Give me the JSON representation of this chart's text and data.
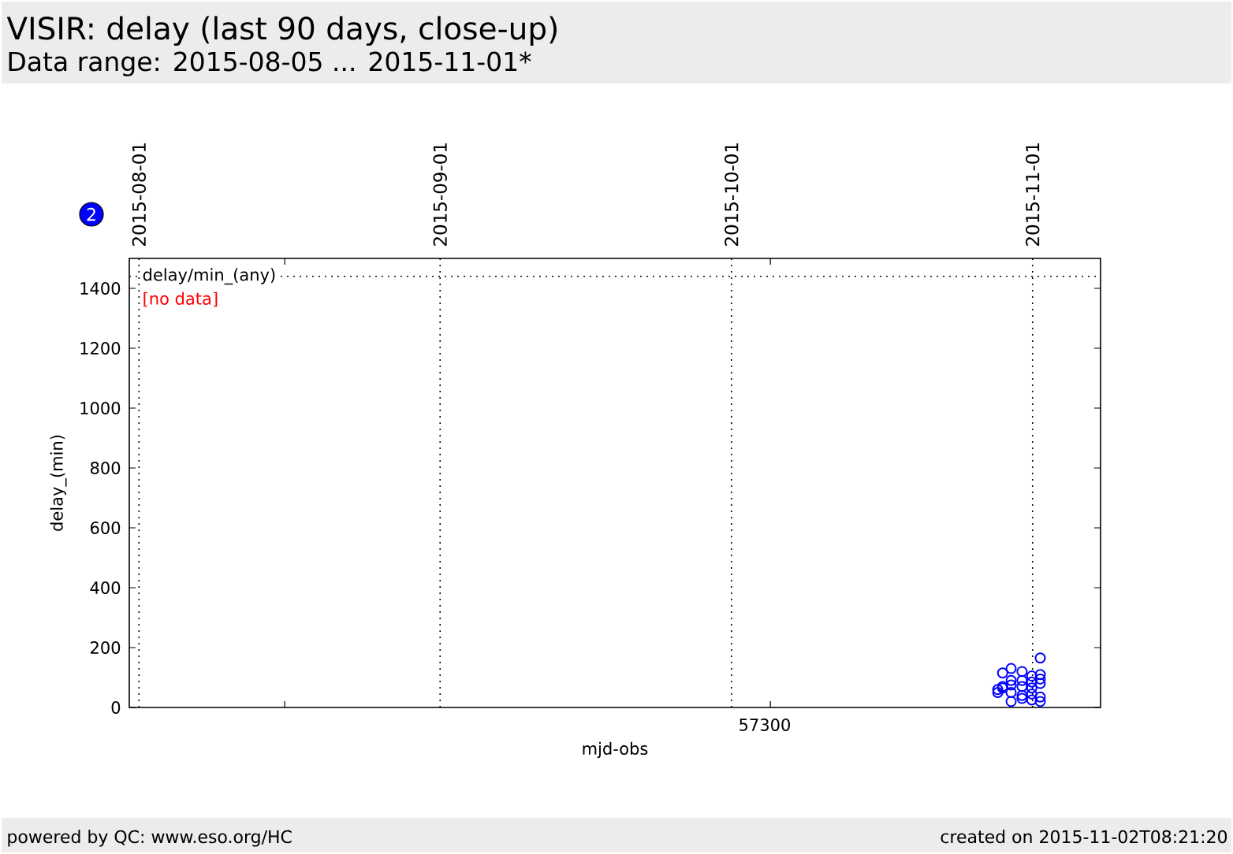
{
  "chart_data": {
    "type": "scatter",
    "title": "VISIR: delay (last 90 days, close-up)",
    "subtitle": "Data range: 2015-08-05 ... 2015-11-01*",
    "xlabel": "mjd-obs",
    "ylabel": "delay_(min)",
    "x": [
      "2015-10-28T10:00",
      "2015-10-28T10:00",
      "2015-10-28T22:00",
      "2015-10-28T22:00",
      "2015-10-28T22:00",
      "2015-10-29T19:00",
      "2015-10-29T19:00",
      "2015-10-29T19:00",
      "2015-10-29T19:00",
      "2015-10-29T19:00",
      "2015-10-30T22:00",
      "2015-10-30T22:00",
      "2015-10-30T22:00",
      "2015-10-30T22:00",
      "2015-10-30T22:00",
      "2015-10-31T22:00",
      "2015-10-31T22:00",
      "2015-10-31T22:00",
      "2015-10-31T22:00",
      "2015-10-31T22:00",
      "2015-11-01T19:00",
      "2015-11-01T19:00",
      "2015-11-01T19:00",
      "2015-11-01T19:00",
      "2015-11-01T19:00",
      "2015-11-01T19:00"
    ],
    "values": [
      50,
      60,
      65,
      70,
      115,
      20,
      50,
      75,
      90,
      130,
      30,
      40,
      70,
      90,
      120,
      25,
      45,
      65,
      85,
      105,
      20,
      35,
      80,
      95,
      110,
      165
    ],
    "color": "#0000ff",
    "marker": "circle",
    "grid": "x",
    "xlim": [
      "2015-07-31",
      "2015-11-08"
    ],
    "ylim": [
      0,
      1500
    ],
    "xticks": [
      "2015-08-01",
      {
        "value": "2015-08-16",
        "label": null
      },
      "2015-09-01",
      "2015-10-01",
      {
        "value": "2015-10-05",
        "label": null
      },
      "2015-11-01"
    ],
    "yticks": [
      0,
      200,
      400,
      600,
      800,
      1000,
      1200,
      1400
    ],
    "ref_lines": [
      {
        "axis": "y",
        "value": 1440,
        "label": "delay/min_(any)",
        "line_style": "dotted"
      }
    ],
    "annotations": [
      "[no data]",
      "2",
      "powered by QC: www.eso.org/HC",
      "created on 2015-11-02T08:21:20",
      "57300"
    ]
  }
}
